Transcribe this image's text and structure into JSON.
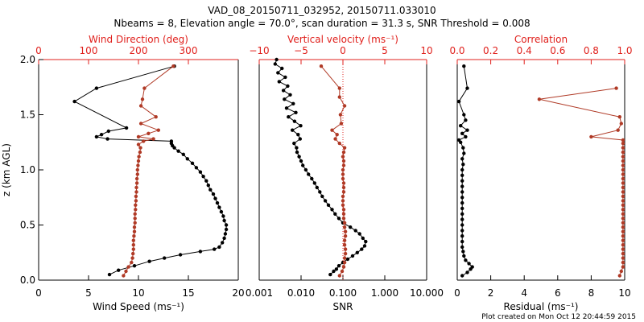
{
  "title_line1": "VAD_08_20150711_032952, 20150711.033010",
  "title_line2": "Nbeams = 8, Elevation angle = 70.0°, scan duration = 31.3 s, SNR Threshold = 0.008",
  "footer": "Plot created on Mon Oct 12 20:44:59 2015",
  "colors": {
    "black_series": "#000000",
    "red_series": "#b03a26",
    "red_axis": "#e0201c"
  },
  "chart_data": [
    {
      "type": "line",
      "ylabel": "z (km AGL)",
      "ylim": [
        0.0,
        2.0
      ],
      "yticks": [
        "0.0",
        "0.5",
        "1.0",
        "1.5",
        "2.0"
      ],
      "bottom_axis": {
        "label": "Wind Speed (ms⁻¹)",
        "range": [
          0,
          20
        ],
        "ticks": [
          "0",
          "5",
          "10",
          "15",
          "20"
        ]
      },
      "top_axis": {
        "label": "Wind Direction (deg)",
        "range": [
          0,
          400
        ],
        "ticks": [
          "0",
          "100",
          "200",
          "300"
        ]
      },
      "series": [
        {
          "axis": "bottom",
          "style": "black",
          "z": [
            0.05,
            0.09,
            0.13,
            0.17,
            0.2,
            0.23,
            0.26,
            0.28,
            0.3,
            0.34,
            0.38,
            0.42,
            0.46,
            0.5,
            0.54,
            0.58,
            0.62,
            0.66,
            0.7,
            0.74,
            0.78,
            0.82,
            0.86,
            0.9,
            0.94,
            0.98,
            1.02,
            1.06,
            1.1,
            1.14,
            1.17,
            1.2,
            1.22,
            1.24,
            1.26,
            1.28,
            1.3,
            1.32,
            1.35,
            1.38,
            1.62,
            1.74,
            1.94
          ],
          "x": [
            7.1,
            8.0,
            9.6,
            11.1,
            12.6,
            14.2,
            16.2,
            17.6,
            18.1,
            18.4,
            18.6,
            18.7,
            18.8,
            18.8,
            18.6,
            18.5,
            18.3,
            18.1,
            17.9,
            17.7,
            17.5,
            17.2,
            17.0,
            16.8,
            16.5,
            16.2,
            15.8,
            15.4,
            14.9,
            14.5,
            14.0,
            13.6,
            13.4,
            13.3,
            13.3,
            6.9,
            5.8,
            6.3,
            7.0,
            8.8,
            3.6,
            5.8,
            13.6
          ]
        },
        {
          "axis": "top",
          "style": "red",
          "z": [
            0.04,
            0.08,
            0.12,
            0.16,
            0.2,
            0.24,
            0.28,
            0.32,
            0.36,
            0.4,
            0.44,
            0.48,
            0.52,
            0.56,
            0.6,
            0.64,
            0.68,
            0.72,
            0.76,
            0.8,
            0.84,
            0.88,
            0.92,
            0.96,
            1.0,
            1.04,
            1.08,
            1.12,
            1.16,
            1.2,
            1.23,
            1.26,
            1.28,
            1.3,
            1.33,
            1.36,
            1.42,
            1.48,
            1.58,
            1.64,
            1.74,
            1.94
          ],
          "x": [
            170,
            175,
            180,
            186,
            188,
            189,
            190,
            190,
            190,
            191,
            192,
            192,
            193,
            193,
            193,
            194,
            194,
            195,
            195,
            196,
            196,
            197,
            197,
            198,
            198,
            199,
            200,
            201,
            203,
            204,
            200,
            210,
            230,
            200,
            220,
            240,
            205,
            235,
            205,
            208,
            212,
            270
          ]
        }
      ]
    },
    {
      "type": "line",
      "bottom_axis": {
        "label": "SNR",
        "scale": "log",
        "range": [
          0.001,
          10.0
        ],
        "ticks": [
          "0.001",
          "0.010",
          "0.100",
          "1.000",
          "10.000"
        ]
      },
      "top_axis": {
        "label": "Vertical velocity (ms⁻¹)",
        "range": [
          -10,
          10
        ],
        "ticks": [
          "−10",
          "−5",
          "0",
          "5",
          "10"
        ]
      },
      "reference_line": {
        "axis": "top",
        "x": 0,
        "style": "dotted"
      },
      "series": [
        {
          "axis": "bottom",
          "style": "black",
          "z": [
            0.05,
            0.08,
            0.1,
            0.13,
            0.16,
            0.19,
            0.22,
            0.25,
            0.28,
            0.31,
            0.35,
            0.38,
            0.42,
            0.45,
            0.48,
            0.52,
            0.56,
            0.6,
            0.64,
            0.68,
            0.72,
            0.76,
            0.8,
            0.84,
            0.88,
            0.92,
            0.96,
            1.0,
            1.04,
            1.08,
            1.12,
            1.16,
            1.2,
            1.24,
            1.28,
            1.32,
            1.36,
            1.4,
            1.44,
            1.48,
            1.52,
            1.56,
            1.6,
            1.64,
            1.68,
            1.72,
            1.76,
            1.8,
            1.84,
            1.88,
            1.92,
            1.96,
            2.0
          ],
          "x": [
            0.05,
            0.06,
            0.07,
            0.08,
            0.1,
            0.13,
            0.17,
            0.22,
            0.28,
            0.33,
            0.35,
            0.3,
            0.25,
            0.2,
            0.15,
            0.1,
            0.08,
            0.065,
            0.055,
            0.045,
            0.038,
            0.032,
            0.028,
            0.024,
            0.021,
            0.018,
            0.015,
            0.013,
            0.011,
            0.01,
            0.009,
            0.008,
            0.0078,
            0.0068,
            0.0095,
            0.0085,
            0.0062,
            0.0098,
            0.007,
            0.005,
            0.0075,
            0.0045,
            0.0065,
            0.004,
            0.0055,
            0.0038,
            0.0048,
            0.003,
            0.0042,
            0.0028,
            0.0035,
            0.0024,
            0.0026
          ]
        },
        {
          "axis": "top",
          "style": "red",
          "z": [
            0.04,
            0.08,
            0.12,
            0.16,
            0.2,
            0.24,
            0.28,
            0.32,
            0.36,
            0.4,
            0.44,
            0.48,
            0.52,
            0.56,
            0.6,
            0.64,
            0.68,
            0.72,
            0.76,
            0.8,
            0.84,
            0.88,
            0.92,
            0.96,
            1.0,
            1.04,
            1.08,
            1.12,
            1.16,
            1.2,
            1.24,
            1.28,
            1.32,
            1.36,
            1.42,
            1.5,
            1.58,
            1.66,
            1.74,
            1.94
          ],
          "x": [
            -0.4,
            -0.1,
            0.1,
            0.2,
            0.2,
            0.3,
            0.3,
            0.2,
            0.2,
            0.3,
            0.3,
            0.2,
            0.2,
            0.1,
            0.1,
            0.1,
            0.0,
            0.0,
            0.0,
            0.1,
            0.1,
            0.1,
            0.0,
            0.0,
            0.0,
            0.1,
            0.1,
            0.0,
            0.1,
            0.2,
            -0.4,
            -0.9,
            -0.7,
            -1.3,
            -0.2,
            -0.3,
            0.2,
            -0.4,
            -0.4,
            -2.6
          ]
        }
      ]
    },
    {
      "type": "line",
      "bottom_axis": {
        "label": "Residual (ms⁻¹)",
        "range": [
          0,
          10
        ],
        "ticks": [
          "0",
          "2",
          "4",
          "6",
          "8",
          "10"
        ]
      },
      "top_axis": {
        "label": "Correlation",
        "range": [
          0.0,
          1.0
        ],
        "ticks": [
          "0.0",
          "0.2",
          "0.4",
          "0.6",
          "0.8",
          "1.0"
        ]
      },
      "series": [
        {
          "axis": "bottom",
          "style": "black",
          "z": [
            0.04,
            0.07,
            0.1,
            0.12,
            0.15,
            0.18,
            0.22,
            0.26,
            0.3,
            0.35,
            0.4,
            0.45,
            0.5,
            0.55,
            0.6,
            0.65,
            0.7,
            0.75,
            0.8,
            0.85,
            0.9,
            0.95,
            1.0,
            1.05,
            1.1,
            1.15,
            1.2,
            1.25,
            1.27,
            1.3,
            1.33,
            1.36,
            1.4,
            1.45,
            1.5,
            1.62,
            1.74,
            1.94
          ],
          "x": [
            0.3,
            0.6,
            0.8,
            0.9,
            0.7,
            0.5,
            0.4,
            0.35,
            0.3,
            0.3,
            0.3,
            0.3,
            0.3,
            0.3,
            0.3,
            0.3,
            0.3,
            0.3,
            0.3,
            0.3,
            0.3,
            0.3,
            0.3,
            0.35,
            0.3,
            0.4,
            0.35,
            0.2,
            0.1,
            0.5,
            0.3,
            0.6,
            0.2,
            0.5,
            0.4,
            0.1,
            0.6,
            0.4
          ]
        },
        {
          "axis": "top",
          "style": "red",
          "z": [
            0.04,
            0.08,
            0.12,
            0.16,
            0.2,
            0.24,
            0.28,
            0.32,
            0.36,
            0.4,
            0.44,
            0.48,
            0.52,
            0.56,
            0.6,
            0.64,
            0.68,
            0.72,
            0.76,
            0.8,
            0.84,
            0.88,
            0.92,
            0.96,
            1.0,
            1.04,
            1.08,
            1.12,
            1.16,
            1.2,
            1.24,
            1.27,
            1.3,
            1.36,
            1.42,
            1.48,
            1.64,
            1.74
          ],
          "x": [
            0.97,
            0.98,
            0.99,
            0.99,
            0.99,
            0.99,
            0.99,
            0.99,
            0.99,
            0.99,
            0.99,
            0.99,
            0.99,
            0.99,
            0.99,
            0.99,
            0.99,
            0.99,
            0.99,
            0.99,
            0.99,
            0.99,
            0.99,
            0.99,
            0.99,
            0.99,
            0.99,
            0.99,
            0.99,
            0.99,
            0.99,
            0.99,
            0.8,
            0.96,
            0.98,
            0.97,
            0.49,
            0.95
          ]
        }
      ]
    }
  ]
}
